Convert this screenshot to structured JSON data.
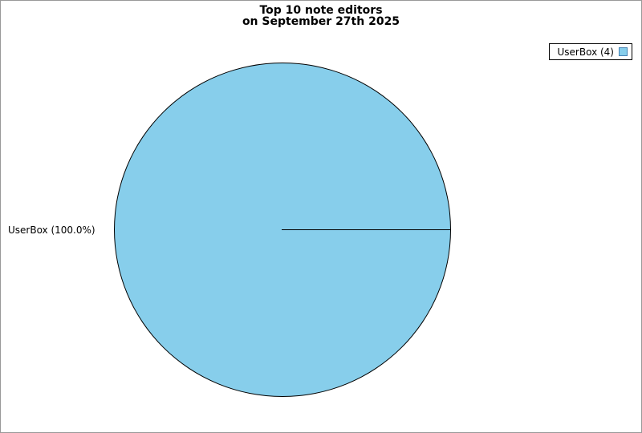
{
  "chart": {
    "title_line1": "Top 10 note editors",
    "title_line2": "on September 27th 2025",
    "slice_label": "UserBox (100.0%)",
    "legend": {
      "entry_label": "UserBox (4)",
      "swatch_icon": "pie-color-swatch"
    }
  },
  "chart_data": {
    "type": "pie",
    "title": "Top 10 note editors on September 27th 2025",
    "labels": [
      "UserBox"
    ],
    "values": [
      4
    ],
    "percents": [
      100.0
    ],
    "slice_colors": [
      "#87CEEB"
    ],
    "legend_entries": [
      "UserBox (4)"
    ],
    "legend_position": "top-right",
    "start_angle_deg": 0,
    "outline": true
  },
  "colors": {
    "background": "#FFFFFF",
    "canvas_border": "#999999",
    "pie_fill": "#87CEEB",
    "pie_outline": "#000000",
    "legend_swatch_border": "#4682B4",
    "text": "#000000"
  }
}
